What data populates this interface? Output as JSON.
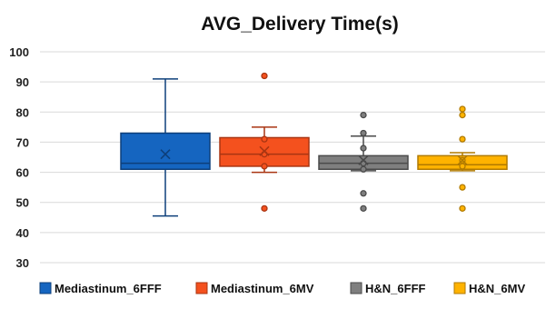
{
  "chart_data": {
    "type": "box",
    "title": "AVG_Delivery Time(s)",
    "xlabel": "",
    "ylabel": "",
    "ylim": [
      30,
      100
    ],
    "yticks": [
      30,
      40,
      50,
      60,
      70,
      80,
      90,
      100
    ],
    "grid": true,
    "legend_position": "bottom",
    "series": [
      {
        "name": "Mediastinum_6FFF",
        "color": "#1565C0",
        "stroke": "#0D3F7A",
        "min": 45.5,
        "q1": 61,
        "median": 63,
        "q3": 73,
        "max": 91,
        "mean": 66,
        "outliers": []
      },
      {
        "name": "Mediastinum_6MV",
        "color": "#F4511E",
        "stroke": "#A93512",
        "min": 60,
        "q1": 62,
        "median": 66,
        "q3": 71.5,
        "max": 75,
        "mean": 67,
        "outliers": [
          48,
          92
        ],
        "points": [
          62,
          66,
          71
        ]
      },
      {
        "name": "H&N_6FFF",
        "color": "#7F7F7F",
        "stroke": "#4A4A4A",
        "min": 60.5,
        "q1": 61,
        "median": 63,
        "q3": 65.5,
        "max": 72,
        "mean": 64,
        "outliers": [
          48,
          53,
          73,
          79
        ],
        "points": [
          61,
          63,
          68
        ]
      },
      {
        "name": "H&N_6MV",
        "color": "#FFB300",
        "stroke": "#B07A00",
        "min": 60.5,
        "q1": 61,
        "median": 62.5,
        "q3": 65.5,
        "max": 66.5,
        "mean": 64,
        "outliers": [
          48,
          55,
          71,
          79,
          81
        ],
        "points": [
          62,
          64
        ]
      }
    ]
  }
}
